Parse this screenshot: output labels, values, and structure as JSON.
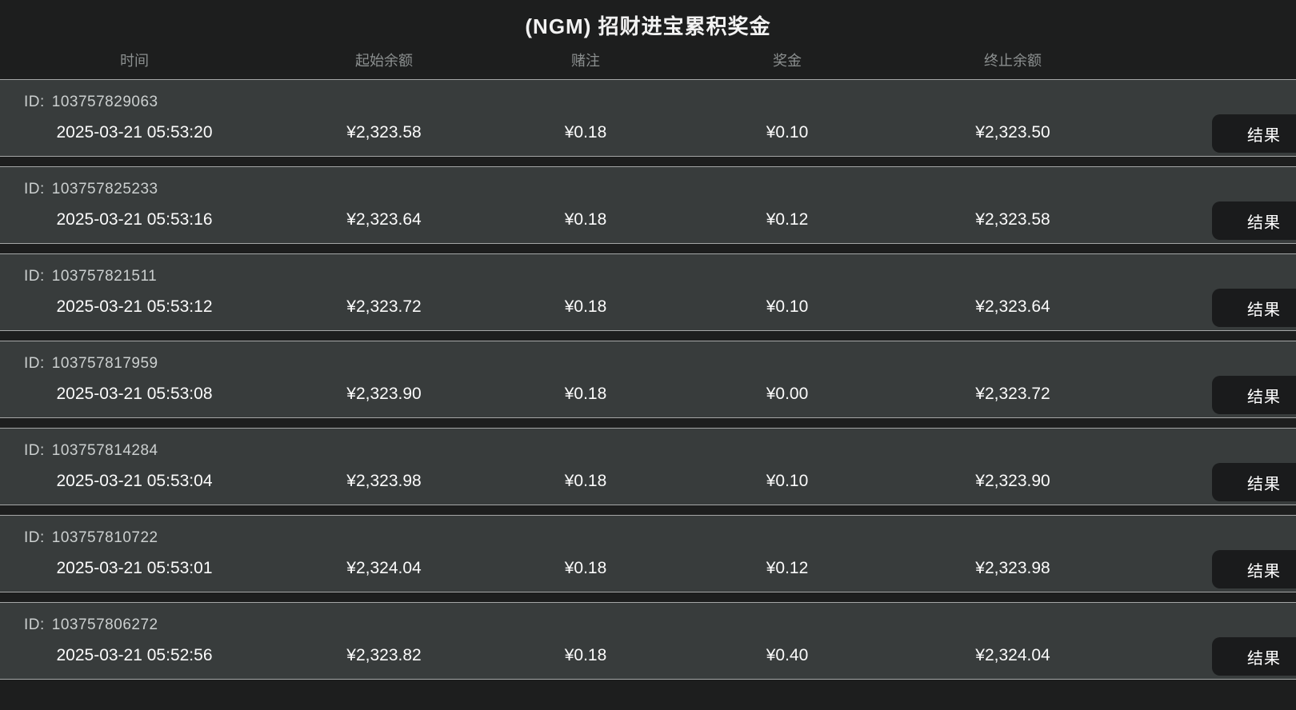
{
  "title": "(NGM) 招财进宝累积奖金",
  "table": {
    "columns": [
      "时间",
      "起始余额",
      "赌注",
      "奖金",
      "终止余额"
    ],
    "id_prefix": "ID:",
    "result_label": "结果",
    "rows": [
      {
        "id": "103757829063",
        "time": "2025-03-21 05:53:20",
        "start_balance": "¥2,323.58",
        "bet": "¥0.18",
        "prize": "¥0.10",
        "end_balance": "¥2,323.50"
      },
      {
        "id": "103757825233",
        "time": "2025-03-21 05:53:16",
        "start_balance": "¥2,323.64",
        "bet": "¥0.18",
        "prize": "¥0.12",
        "end_balance": "¥2,323.58"
      },
      {
        "id": "103757821511",
        "time": "2025-03-21 05:53:12",
        "start_balance": "¥2,323.72",
        "bet": "¥0.18",
        "prize": "¥0.10",
        "end_balance": "¥2,323.64"
      },
      {
        "id": "103757817959",
        "time": "2025-03-21 05:53:08",
        "start_balance": "¥2,323.90",
        "bet": "¥0.18",
        "prize": "¥0.00",
        "end_balance": "¥2,323.72"
      },
      {
        "id": "103757814284",
        "time": "2025-03-21 05:53:04",
        "start_balance": "¥2,323.98",
        "bet": "¥0.18",
        "prize": "¥0.10",
        "end_balance": "¥2,323.90"
      },
      {
        "id": "103757810722",
        "time": "2025-03-21 05:53:01",
        "start_balance": "¥2,324.04",
        "bet": "¥0.18",
        "prize": "¥0.12",
        "end_balance": "¥2,323.98"
      },
      {
        "id": "103757806272",
        "time": "2025-03-21 05:52:56",
        "start_balance": "¥2,323.82",
        "bet": "¥0.18",
        "prize": "¥0.40",
        "end_balance": "¥2,324.04"
      }
    ]
  },
  "colors": {
    "page_bg": "#1d1e1e",
    "row_bg": "#383c3c",
    "button_bg": "#1a1b1c",
    "title_text": "#f2f2f2",
    "header_text": "#8b8f8f",
    "value_text": "#fbfbfb",
    "row_divider": "#b9bdbd"
  }
}
